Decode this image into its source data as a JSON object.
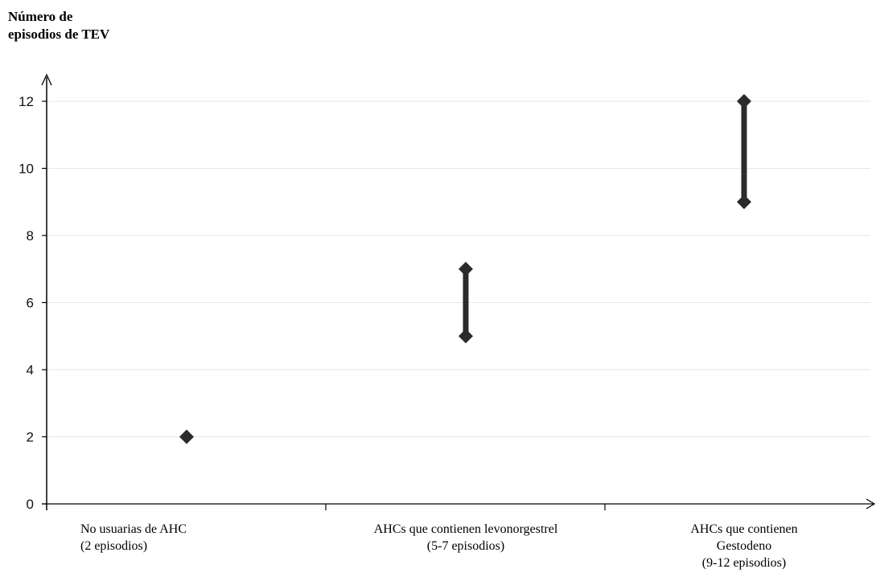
{
  "chart_data": {
    "type": "range",
    "ylabel": "Número de episodios de TEV",
    "ylim": [
      0,
      12
    ],
    "yticks": [
      0,
      2,
      4,
      6,
      8,
      10,
      12
    ],
    "grid": true,
    "categories": [
      "No usuarias de AHC\n(2 episodios)",
      "AHCs que contienen levonorgestrel\n(5-7 episodios)",
      "AHCs que contienen\nGestodeno\n(9-12 episodios)"
    ],
    "ranges": [
      {
        "low": 2,
        "high": 2
      },
      {
        "low": 5,
        "high": 7
      },
      {
        "low": 9,
        "high": 12
      }
    ],
    "colors": {
      "marker": "#2b2b2b",
      "axis": "#000000",
      "grid": "#e6e6e6"
    }
  }
}
